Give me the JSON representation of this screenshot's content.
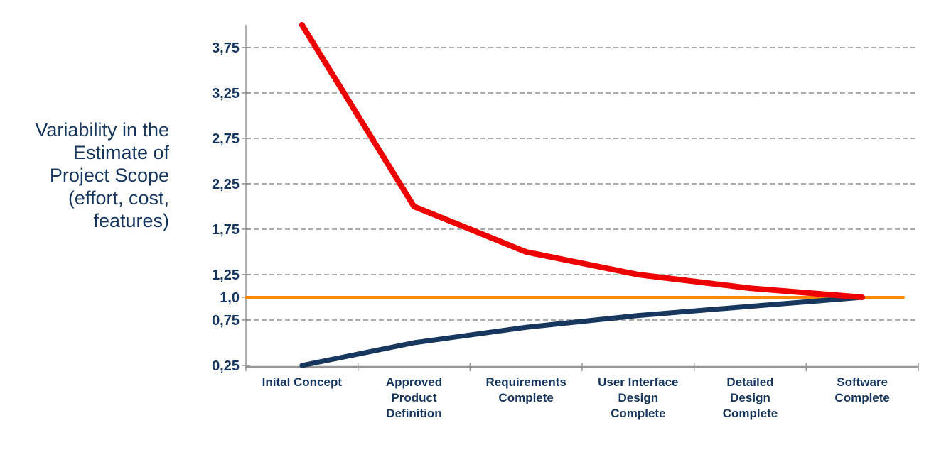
{
  "axis_title": "Variability in the\nEstimate of\nProject Scope\n(effort, cost,\nfeatures)",
  "colors": {
    "text_navy": "#17365D",
    "upper_line_red": "#EE0000",
    "lower_line_navy": "#17375E",
    "baseline_orange": "#FA8A00",
    "gridline_gray": "#ABABAB",
    "axis_gray": "#979797"
  },
  "chart_data": {
    "type": "line",
    "title": "",
    "xlabel": "",
    "ylabel": "Variability in the Estimate of Project Scope (effort, cost, features)",
    "ylim": [
      0.25,
      4.0
    ],
    "grid": "horizontal dashed",
    "legend": "none",
    "categories": [
      "Inital Concept",
      "Approved\nProduct\nDefinition",
      "Requirements\nComplete",
      "User Interface\nDesign\nComplete",
      "Detailed\nDesign\nComplete",
      "Software\nComplete"
    ],
    "y_ticks": [
      {
        "label": "3,75",
        "value": 3.75,
        "grid": true
      },
      {
        "label": "3,25",
        "value": 3.25,
        "grid": true
      },
      {
        "label": "2,75",
        "value": 2.75,
        "grid": true
      },
      {
        "label": "2,25",
        "value": 2.25,
        "grid": true
      },
      {
        "label": "1,75",
        "value": 1.75,
        "grid": true
      },
      {
        "label": "1,25",
        "value": 1.25,
        "grid": true
      },
      {
        "label": "1,0",
        "value": 1.0,
        "grid": false
      },
      {
        "label": "0,75",
        "value": 0.75,
        "grid": true
      },
      {
        "label": "0,25",
        "value": 0.25,
        "grid": false
      }
    ],
    "series": [
      {
        "name": "baseline-1x",
        "color": "#FA8A00",
        "stroke_width": 4,
        "values": [
          1.0,
          1.0,
          1.0,
          1.0,
          1.0,
          1.0
        ],
        "span_full_width": true
      },
      {
        "name": "lower-estimate-bound",
        "color": "#17375E",
        "stroke_width": 7,
        "values": [
          0.25,
          0.5,
          0.67,
          0.8,
          0.9,
          1.0
        ],
        "span_full_width": false
      },
      {
        "name": "upper-estimate-bound",
        "color": "#EE0000",
        "stroke_width": 8,
        "values": [
          4.0,
          2.0,
          1.5,
          1.25,
          1.1,
          1.0
        ],
        "span_full_width": false
      }
    ]
  }
}
